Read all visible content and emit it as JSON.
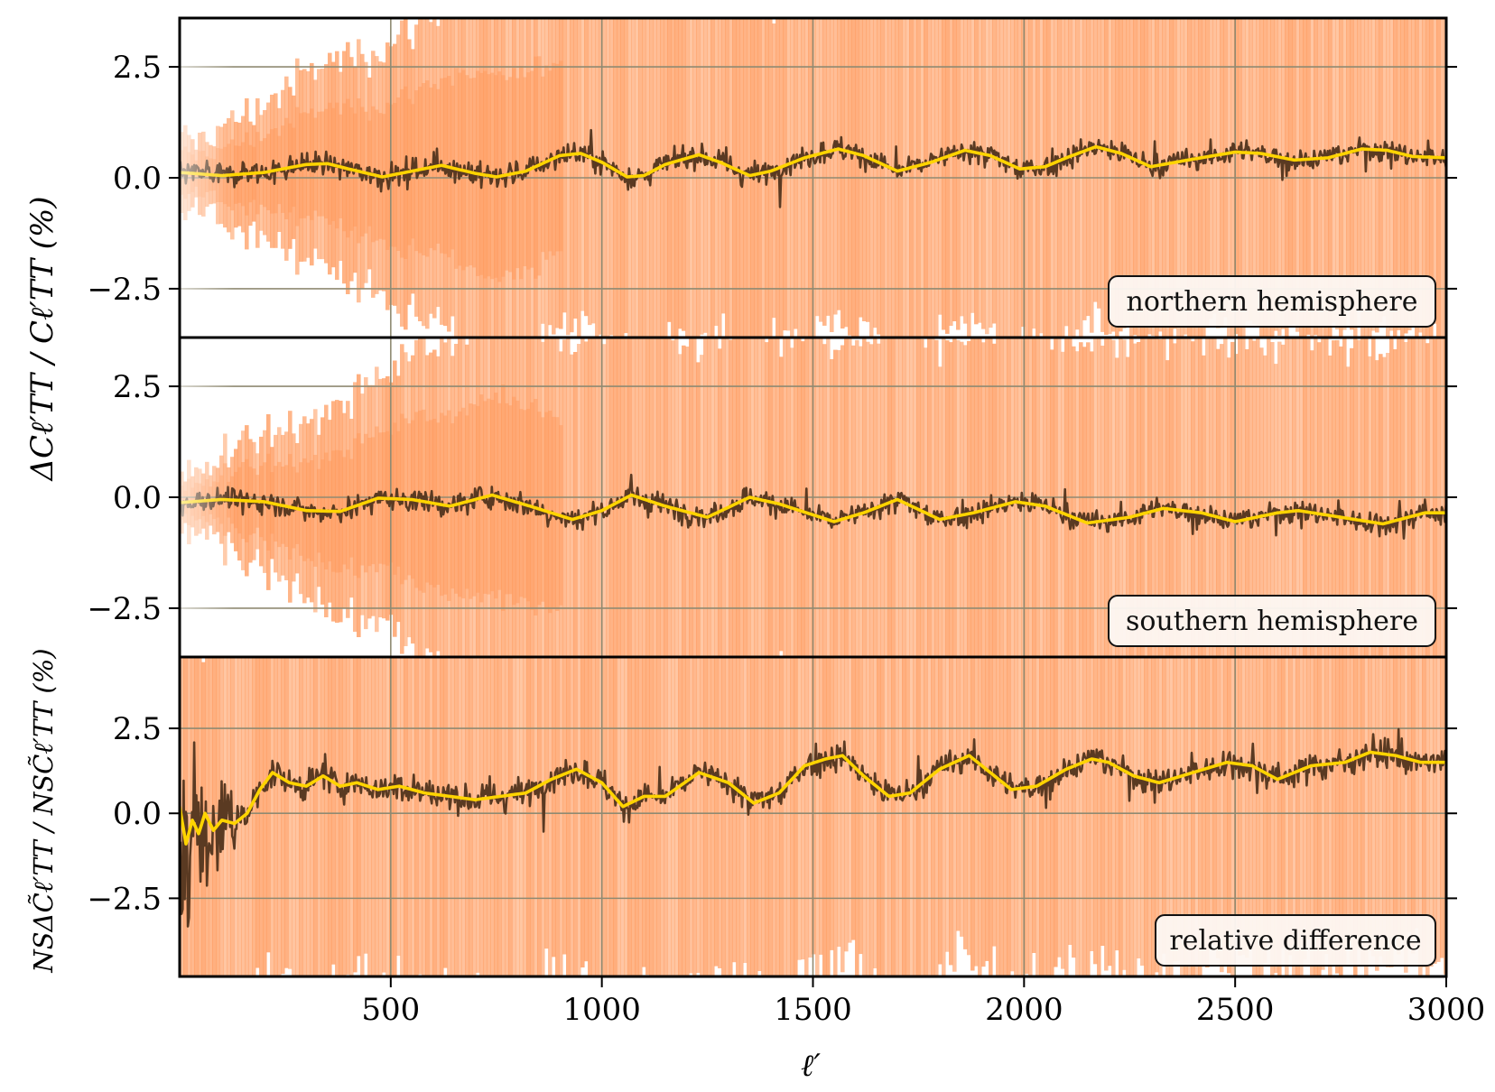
{
  "chart_data": [
    {
      "type": "line",
      "panel": "northern",
      "label": "northern hemisphere",
      "ylabel": "ΔCℓ′TT / Cℓ′TT (%)",
      "xlim": [
        0,
        3000
      ],
      "ylim": [
        -3.6,
        3.6
      ],
      "yticks": [
        -2.5,
        0.0,
        2.5
      ],
      "ytick_labels": [
        "−2.5",
        "0.0",
        "2.5"
      ],
      "series": [
        {
          "name": "smoothed mean",
          "color": "#ffd400",
          "x": [
            0,
            100,
            200,
            300,
            350,
            400,
            480,
            550,
            620,
            700,
            750,
            820,
            900,
            950,
            1000,
            1060,
            1100,
            1150,
            1230,
            1280,
            1350,
            1400,
            1480,
            1560,
            1620,
            1700,
            1780,
            1860,
            1920,
            1990,
            2050,
            2100,
            2170,
            2230,
            2300,
            2400,
            2500,
            2560,
            2640,
            2720,
            2800,
            2860,
            2920,
            3000
          ],
          "y": [
            0.12,
            0.05,
            0.12,
            0.3,
            0.32,
            0.2,
            0.02,
            0.15,
            0.28,
            0.1,
            0.02,
            0.15,
            0.5,
            0.55,
            0.35,
            0.02,
            0.05,
            0.3,
            0.52,
            0.35,
            0.05,
            0.15,
            0.45,
            0.65,
            0.5,
            0.15,
            0.35,
            0.62,
            0.5,
            0.2,
            0.25,
            0.45,
            0.7,
            0.55,
            0.25,
            0.42,
            0.58,
            0.55,
            0.4,
            0.45,
            0.65,
            0.62,
            0.48,
            0.45
          ]
        },
        {
          "name": "raw"
        },
        {
          "name": "realizations"
        }
      ]
    },
    {
      "type": "line",
      "panel": "southern",
      "label": "southern hemisphere",
      "xlim": [
        0,
        3000
      ],
      "ylim": [
        -3.6,
        3.6
      ],
      "yticks": [
        -2.5,
        0.0,
        2.5
      ],
      "ytick_labels": [
        "−2.5",
        "0.0",
        "2.5"
      ],
      "series": [
        {
          "name": "smoothed mean",
          "color": "#ffd400",
          "x": [
            0,
            100,
            200,
            300,
            380,
            470,
            550,
            640,
            740,
            830,
            930,
            1000,
            1070,
            1150,
            1250,
            1350,
            1420,
            1550,
            1620,
            1700,
            1800,
            1880,
            1980,
            2050,
            2150,
            2250,
            2330,
            2420,
            2500,
            2600,
            2650,
            2750,
            2850,
            2950,
            3000
          ],
          "y": [
            -0.12,
            -0.05,
            -0.1,
            -0.3,
            -0.32,
            -0.02,
            -0.05,
            -0.2,
            0.05,
            -0.2,
            -0.5,
            -0.3,
            0.05,
            -0.2,
            -0.45,
            0.0,
            -0.15,
            -0.55,
            -0.35,
            -0.05,
            -0.5,
            -0.35,
            -0.1,
            -0.2,
            -0.58,
            -0.45,
            -0.25,
            -0.35,
            -0.55,
            -0.35,
            -0.3,
            -0.45,
            -0.6,
            -0.35,
            -0.35
          ]
        },
        {
          "name": "raw"
        },
        {
          "name": "realizations"
        }
      ]
    },
    {
      "type": "line",
      "panel": "difference",
      "label": "relative difference",
      "ylabel": "NSΔC̃ℓ′TT / NSC̃ℓ′TT (%)",
      "xlabel": "ℓ′",
      "xlim": [
        0,
        3000
      ],
      "ylim": [
        -4.8,
        4.6
      ],
      "xticks": [
        500,
        1000,
        1500,
        2000,
        2500,
        3000
      ],
      "xtick_labels": [
        "500",
        "1000",
        "1500",
        "2000",
        "2500",
        "3000"
      ],
      "yticks": [
        -2.5,
        0.0,
        2.5
      ],
      "ytick_labels": [
        "−2.5",
        "0.0",
        "2.5"
      ],
      "series": [
        {
          "name": "smoothed mean",
          "color": "#ffd400",
          "x": [
            0,
            15,
            30,
            45,
            60,
            80,
            100,
            130,
            160,
            190,
            220,
            260,
            300,
            340,
            380,
            420,
            470,
            520,
            580,
            640,
            700,
            760,
            820,
            880,
            940,
            1000,
            1050,
            1100,
            1150,
            1230,
            1300,
            1360,
            1420,
            1480,
            1530,
            1570,
            1620,
            1680,
            1730,
            1800,
            1870,
            1920,
            1970,
            2030,
            2100,
            2160,
            2200,
            2260,
            2320,
            2400,
            2480,
            2540,
            2600,
            2680,
            2760,
            2820,
            2880,
            2940,
            3000
          ],
          "y": [
            0.2,
            -0.9,
            -0.2,
            -0.6,
            0.0,
            -0.5,
            -0.2,
            -0.3,
            0.0,
            0.7,
            1.2,
            0.9,
            0.8,
            1.1,
            0.8,
            0.9,
            0.7,
            0.8,
            0.6,
            0.5,
            0.4,
            0.5,
            0.6,
            1.0,
            1.3,
            0.9,
            0.2,
            0.5,
            0.5,
            1.2,
            0.9,
            0.3,
            0.6,
            1.4,
            1.6,
            1.7,
            1.1,
            0.5,
            0.6,
            1.3,
            1.7,
            1.2,
            0.7,
            0.8,
            1.3,
            1.6,
            1.5,
            1.1,
            0.9,
            1.2,
            1.5,
            1.4,
            1.0,
            1.4,
            1.5,
            1.8,
            1.7,
            1.5,
            1.5
          ]
        },
        {
          "name": "raw"
        },
        {
          "name": "realizations"
        }
      ]
    }
  ]
}
